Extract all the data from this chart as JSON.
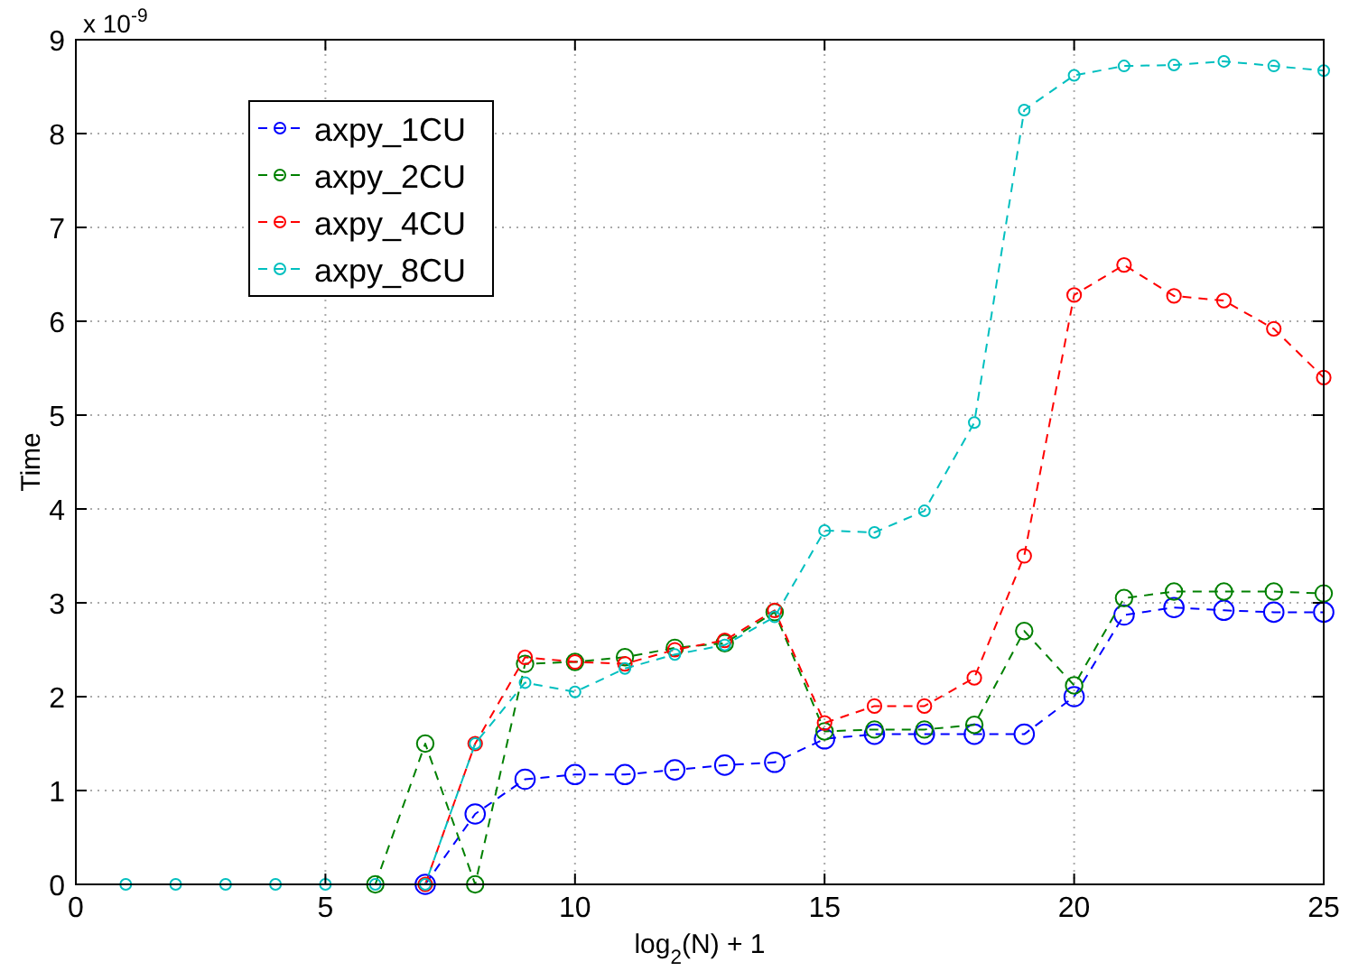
{
  "chart_data": {
    "type": "line",
    "xlabel": "log$_{2}$(N) + 1",
    "ylabel": "Time",
    "annotations": [
      "x 10$^{-9}$"
    ],
    "x": [
      1,
      2,
      3,
      4,
      5,
      6,
      7,
      8,
      9,
      10,
      11,
      12,
      13,
      14,
      15,
      16,
      17,
      18,
      19,
      20,
      21,
      22,
      23,
      24,
      25
    ],
    "xlim": [
      0,
      25
    ],
    "xticks": [
      0,
      5,
      10,
      15,
      20,
      25
    ],
    "ylim": [
      0,
      9
    ],
    "yticks": [
      0,
      1,
      2,
      3,
      4,
      5,
      6,
      7,
      8,
      9
    ],
    "grid": true,
    "legend": "top left",
    "marker": "circle",
    "line_style": "dashed",
    "series": [
      {
        "name": "axpy_1CU",
        "color": "#0000ff",
        "values": [
          null,
          null,
          null,
          null,
          null,
          null,
          0,
          0.75,
          1.12,
          1.17,
          1.17,
          1.22,
          1.27,
          1.3,
          1.55,
          1.6,
          1.6,
          1.6,
          1.6,
          2.0,
          2.87,
          2.95,
          2.92,
          2.9,
          2.9
        ]
      },
      {
        "name": "axpy_2CU",
        "color": "#008000",
        "values": [
          null,
          null,
          null,
          null,
          null,
          0,
          1.5,
          0,
          2.35,
          2.37,
          2.42,
          2.52,
          2.57,
          2.9,
          1.63,
          1.65,
          1.65,
          1.7,
          2.7,
          2.12,
          3.05,
          3.12,
          3.12,
          3.12,
          3.1
        ]
      },
      {
        "name": "axpy_4CU",
        "color": "#ff0000",
        "values": [
          null,
          null,
          null,
          null,
          null,
          null,
          0,
          1.5,
          2.42,
          2.37,
          2.35,
          2.5,
          2.6,
          2.92,
          1.72,
          1.9,
          1.9,
          2.2,
          3.5,
          6.28,
          6.6,
          6.27,
          6.22,
          5.92,
          5.4
        ]
      },
      {
        "name": "axpy_8CU",
        "color": "#00bfbf",
        "values": [
          0,
          0,
          0,
          0,
          0,
          0,
          0,
          1.5,
          2.15,
          2.05,
          2.3,
          2.45,
          2.55,
          2.85,
          3.77,
          3.75,
          3.98,
          4.92,
          8.25,
          8.62,
          8.72,
          8.73,
          8.77,
          8.72,
          8.67
        ]
      }
    ]
  }
}
